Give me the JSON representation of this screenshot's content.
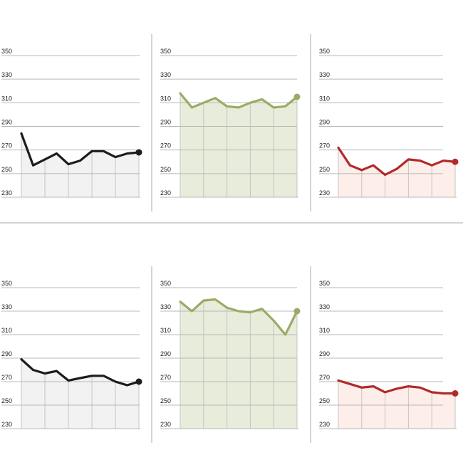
{
  "colors": {
    "black": "#1c1c1c",
    "green": "#9aab66",
    "red": "#b22a2a",
    "fill_black": "#f2f2f2",
    "fill_green": "#e8ecdb",
    "fill_red": "#fdeeea",
    "gridline": "#b8b8b8",
    "divider": "#aaaaaa"
  },
  "chart_data": [
    {
      "type": "line",
      "color_key": "black",
      "ylim": [
        230,
        350
      ],
      "yticks": [
        "230",
        "250",
        "270",
        "290",
        "310",
        "330",
        "350"
      ],
      "series": [
        {
          "values": [
            284,
            257,
            262,
            267,
            258,
            261,
            269,
            269,
            264,
            267,
            268
          ]
        }
      ]
    },
    {
      "type": "line",
      "color_key": "green",
      "ylim": [
        230,
        350
      ],
      "yticks": [
        "230",
        "250",
        "270",
        "290",
        "310",
        "330",
        "350"
      ],
      "series": [
        {
          "values": [
            318,
            306,
            310,
            314,
            307,
            306,
            310,
            313,
            306,
            307,
            315
          ]
        }
      ]
    },
    {
      "type": "line",
      "color_key": "red",
      "ylim": [
        230,
        350
      ],
      "yticks": [
        "230",
        "250",
        "270",
        "290",
        "310",
        "330",
        "350"
      ],
      "series": [
        {
          "values": [
            272,
            257,
            253,
            257,
            249,
            254,
            262,
            261,
            257,
            261,
            260
          ]
        }
      ]
    },
    {
      "type": "line",
      "color_key": "black",
      "ylim": [
        230,
        350
      ],
      "yticks": [
        "230",
        "250",
        "270",
        "290",
        "310",
        "330",
        "350"
      ],
      "series": [
        {
          "values": [
            289,
            280,
            277,
            279,
            271,
            273,
            275,
            275,
            270,
            267,
            270
          ]
        }
      ]
    },
    {
      "type": "line",
      "color_key": "green",
      "ylim": [
        230,
        350
      ],
      "yticks": [
        "230",
        "250",
        "270",
        "290",
        "310",
        "330",
        "350"
      ],
      "series": [
        {
          "values": [
            338,
            330,
            339,
            340,
            333,
            330,
            329,
            332,
            322,
            310,
            330
          ]
        }
      ]
    },
    {
      "type": "line",
      "color_key": "red",
      "ylim": [
        230,
        350
      ],
      "yticks": [
        "230",
        "250",
        "270",
        "290",
        "310",
        "330",
        "350"
      ],
      "series": [
        {
          "values": [
            271,
            268,
            265,
            266,
            261,
            264,
            266,
            265,
            261,
            260,
            260
          ]
        }
      ]
    }
  ]
}
